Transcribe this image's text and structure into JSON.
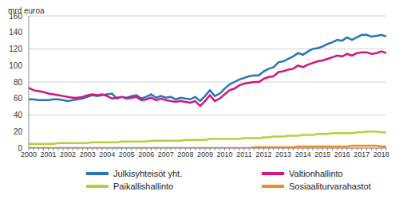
{
  "chart_data": {
    "type": "line",
    "y_label": "mrd euroa",
    "categories": [
      "2000",
      null,
      null,
      null,
      "2001",
      null,
      null,
      null,
      "2002",
      null,
      null,
      null,
      "2003",
      null,
      null,
      null,
      "2004",
      null,
      null,
      null,
      "2005",
      null,
      null,
      null,
      "2006",
      null,
      null,
      null,
      "2007",
      null,
      null,
      null,
      "2008",
      null,
      null,
      null,
      "2009",
      null,
      null,
      null,
      "2010",
      null,
      null,
      null,
      "2011",
      null,
      null,
      null,
      "2012",
      null,
      null,
      null,
      "2013",
      null,
      null,
      null,
      "2014",
      null,
      null,
      null,
      "2015",
      null,
      null,
      null,
      "2016",
      null,
      null,
      null,
      "2017",
      null,
      null,
      null,
      "2018",
      null
    ],
    "series": [
      {
        "name": "Julkisyhteisöt yht.",
        "color": "#2776b8",
        "values": [
          59,
          59,
          58,
          58,
          58,
          59,
          59,
          58,
          57,
          58,
          59,
          60,
          62,
          64,
          63,
          64,
          65,
          66,
          60,
          62,
          61,
          63,
          64,
          60,
          62,
          65,
          61,
          63,
          61,
          62,
          59,
          61,
          60,
          59,
          62,
          57,
          63,
          70,
          63,
          66,
          72,
          77,
          80,
          83,
          85,
          87,
          88,
          88,
          93,
          96,
          98,
          104,
          105,
          108,
          111,
          115,
          113,
          117,
          120,
          121,
          123,
          126,
          128,
          131,
          130,
          134,
          131,
          134,
          137,
          137,
          135,
          136,
          137,
          135
        ]
      },
      {
        "name": "Valtionhallinto",
        "color": "#d3157f",
        "values": [
          73,
          70,
          69,
          68,
          66,
          65,
          64,
          63,
          62,
          61,
          61,
          62,
          64,
          65,
          64,
          65,
          63,
          60,
          61,
          62,
          60,
          61,
          62,
          58,
          59,
          61,
          58,
          60,
          58,
          57,
          56,
          57,
          56,
          55,
          57,
          51,
          57,
          64,
          57,
          60,
          65,
          70,
          72,
          76,
          78,
          79,
          80,
          80,
          84,
          86,
          87,
          92,
          93,
          95,
          96,
          100,
          98,
          101,
          103,
          105,
          106,
          108,
          110,
          112,
          111,
          114,
          112,
          115,
          116,
          116,
          114,
          115,
          117,
          115
        ]
      },
      {
        "name": "Paikallishallinto",
        "color": "#b6cf3a",
        "values": [
          5,
          5,
          5,
          5,
          5,
          5,
          6,
          6,
          6,
          6,
          6,
          6,
          6,
          7,
          7,
          7,
          7,
          7,
          7,
          8,
          8,
          8,
          8,
          8,
          8,
          9,
          9,
          9,
          9,
          9,
          9,
          9,
          10,
          10,
          10,
          10,
          10,
          11,
          11,
          11,
          11,
          11,
          11,
          11,
          12,
          12,
          12,
          12,
          13,
          13,
          14,
          14,
          14,
          15,
          15,
          15,
          16,
          16,
          16,
          17,
          17,
          17,
          18,
          18,
          18,
          18,
          18,
          19,
          19,
          20,
          20,
          20,
          19,
          19
        ]
      },
      {
        "name": "Sosiaaliturvarahastot",
        "color": "#f08a24",
        "values": [
          0,
          0,
          0,
          0,
          0,
          0,
          0,
          0,
          0,
          0,
          0,
          0,
          0,
          0,
          0,
          0,
          0,
          0,
          0,
          0,
          0,
          0,
          0,
          0,
          0,
          0,
          0,
          0,
          0,
          0,
          0,
          0,
          0,
          0,
          0,
          0,
          0,
          0,
          0,
          0,
          0,
          0,
          0,
          0,
          0,
          0,
          1,
          1,
          1,
          1,
          1,
          1,
          1,
          1,
          1,
          2,
          2,
          2,
          2,
          2,
          2,
          2,
          2,
          2,
          2,
          2,
          3,
          3,
          3,
          3,
          3,
          3,
          2,
          2
        ]
      }
    ],
    "ylim": [
      0,
      160
    ],
    "yticks": [
      0,
      20,
      40,
      60,
      80,
      100,
      120,
      140,
      160
    ],
    "grid": true,
    "legend": "bottom"
  }
}
